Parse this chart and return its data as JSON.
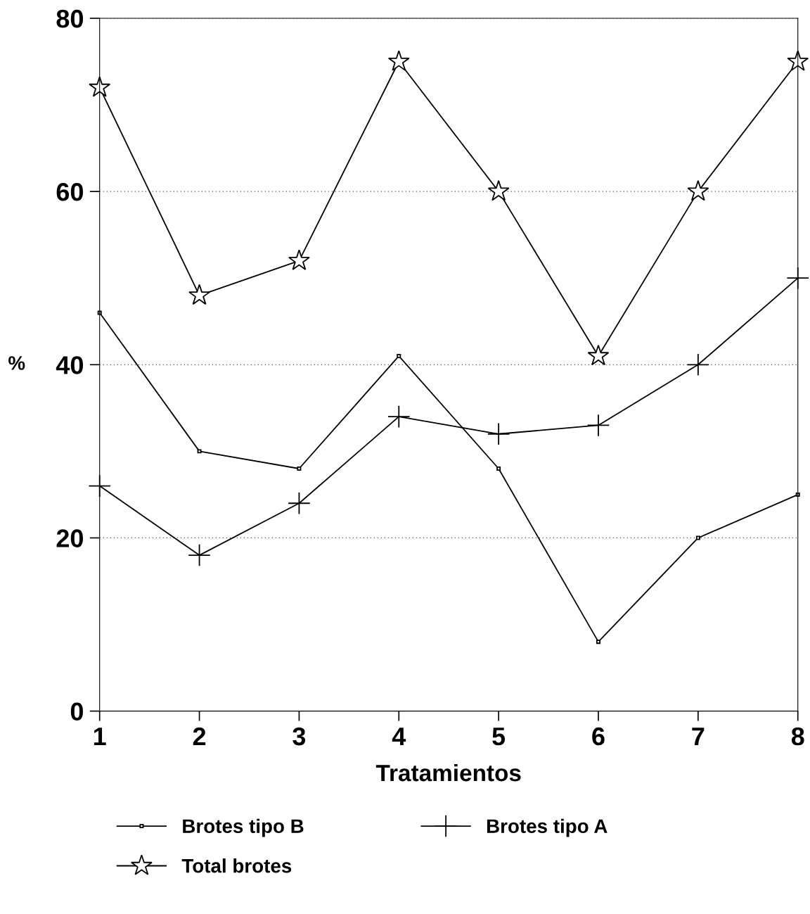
{
  "chart_data": {
    "type": "line",
    "xlabel": "Tratamientos",
    "ylabel": "%",
    "x": [
      1,
      2,
      3,
      4,
      5,
      6,
      7,
      8
    ],
    "series": [
      {
        "name": "Brotes tipo B",
        "color": "#000000",
        "marker": "square",
        "values": [
          46,
          30,
          28,
          41,
          28,
          8,
          20,
          25
        ]
      },
      {
        "name": "Total brotes",
        "color": "#000000",
        "marker": "star",
        "values": [
          72,
          48,
          52,
          75,
          60,
          41,
          60,
          75
        ]
      },
      {
        "name": "Brotes tipo A",
        "color": "#000000",
        "marker": "cross",
        "values": [
          26,
          18,
          24,
          34,
          32,
          33,
          40,
          50
        ]
      }
    ],
    "xlim": [
      1,
      8
    ],
    "xticks": [
      1,
      2,
      3,
      4,
      5,
      6,
      7,
      8
    ],
    "ylim": [
      0,
      80
    ],
    "yticks": [
      0,
      20,
      40,
      60,
      80
    ],
    "grid": "y",
    "legend": "bottom",
    "line_style": "solid"
  }
}
